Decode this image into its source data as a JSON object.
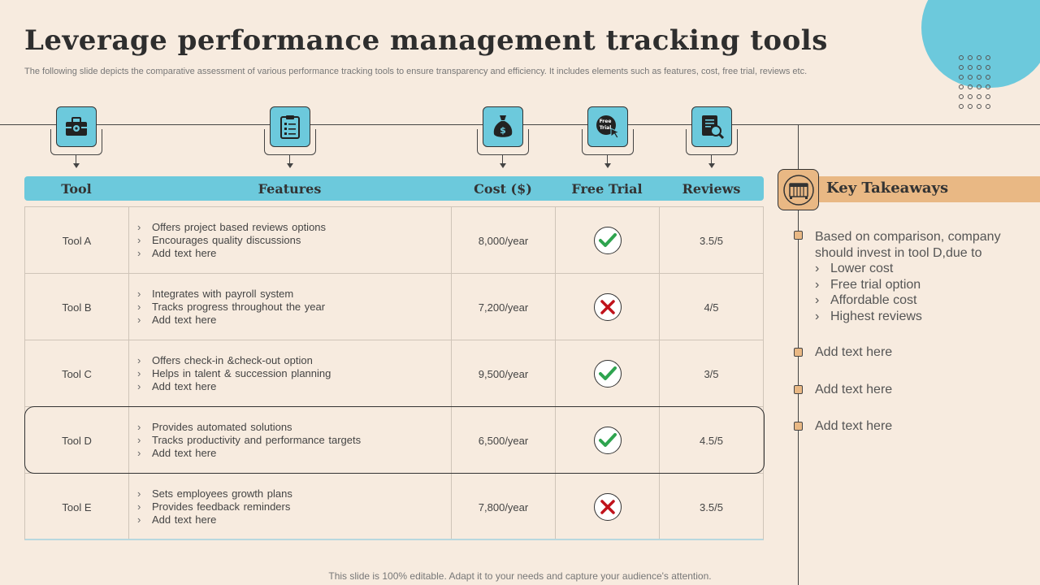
{
  "title": "Leverage performance management tracking tools",
  "subtitle": "The following slide depicts the comparative assessment of various performance tracking tools to ensure transparency and efficiency. It includes elements such as features, cost, free trial, reviews etc.",
  "icons": {
    "tool": "toolbox-icon",
    "features": "checklist-icon",
    "cost": "money-bag-icon",
    "free_trial": "free-trial-icon",
    "reviews": "review-document-icon"
  },
  "free_trial_icon_text": "Free Trial",
  "table": {
    "headers": [
      "Tool",
      "Features",
      "Cost ($)",
      "Free Trial",
      "Reviews"
    ],
    "rows": [
      {
        "tool": "Tool A",
        "features": [
          "Offers project based reviews options",
          "Encourages quality discussions",
          "Add text here"
        ],
        "cost": "8,000/year",
        "free_trial": true,
        "reviews": "3.5/5"
      },
      {
        "tool": "Tool B",
        "features": [
          "Integrates with payroll system",
          "Tracks progress throughout the year",
          "Add text here"
        ],
        "cost": "7,200/year",
        "free_trial": false,
        "reviews": "4/5"
      },
      {
        "tool": "Tool C",
        "features": [
          "Offers check-in &check-out option",
          "Helps in talent & succession planning",
          "Add text here"
        ],
        "cost": "9,500/year",
        "free_trial": true,
        "reviews": "3/5"
      },
      {
        "tool": "Tool D",
        "features": [
          "Provides automated solutions",
          "Tracks productivity and performance targets",
          "Add text here"
        ],
        "cost": "6,500/year",
        "free_trial": true,
        "reviews": "4.5/5",
        "highlighted": true
      },
      {
        "tool": "Tool E",
        "features": [
          "Sets employees growth plans",
          "Provides feedback reminders",
          "Add text here"
        ],
        "cost": "7,800/year",
        "free_trial": false,
        "reviews": "3.5/5"
      }
    ]
  },
  "key_takeaways": {
    "title": "Key Takeaways",
    "icon": "cabinet-icon",
    "intro_line1": "Based on comparison, company",
    "intro_line2": "should invest in tool D,due to",
    "reasons": [
      "Lower cost",
      "Free trial option",
      "Affordable cost",
      "Highest reviews"
    ],
    "items": [
      "Add text here",
      "Add text here",
      "Add text here"
    ]
  },
  "colors": {
    "background": "#f7ebdf",
    "accent_blue": "#6cc9dc",
    "accent_orange": "#e9b884",
    "check_green": "#2ea44f",
    "cross_red": "#c0121b"
  },
  "footer": "This slide is 100% editable. Adapt it to your needs and capture your audience's attention."
}
